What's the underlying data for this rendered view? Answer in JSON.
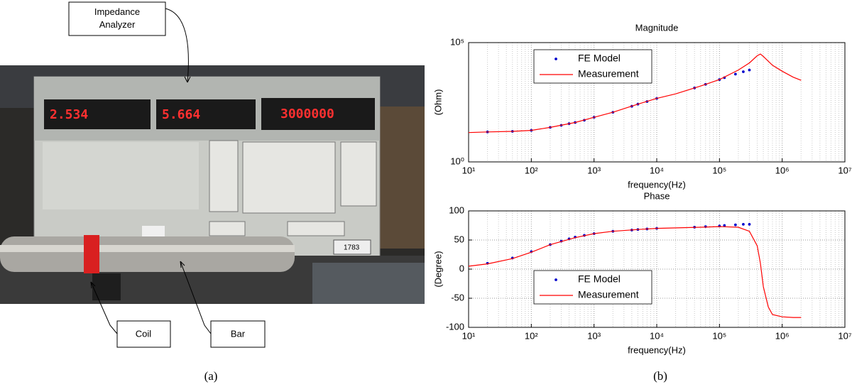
{
  "figure": {
    "callouts": [
      "Impedance\nAnalyzer",
      "Coil",
      "Bar"
    ],
    "panel_labels": [
      "(a)",
      "(b)"
    ],
    "photo": {
      "displays": [
        "2.534",
        "5.664",
        "3000000"
      ],
      "tag": "1783"
    }
  },
  "chart_data": [
    {
      "type": "line",
      "title": "Magnitude",
      "xlabel": "frequency(Hz)",
      "ylabel": "(Ohm)",
      "xscale": "log",
      "yscale": "log",
      "grid": true,
      "minor_grid": true,
      "legend": "upper left",
      "xlim": [
        10,
        10000000
      ],
      "xticks": [
        {
          "value": 10,
          "label": "10¹"
        },
        {
          "value": 100,
          "label": "10²"
        },
        {
          "value": 1000,
          "label": "10³"
        },
        {
          "value": 10000,
          "label": "10⁴"
        },
        {
          "value": 100000,
          "label": "10⁵"
        },
        {
          "value": 1000000,
          "label": "10⁶"
        },
        {
          "value": 10000000,
          "label": "10⁷"
        }
      ],
      "ylim": [
        1,
        100000
      ],
      "yticks": [
        {
          "value": 1,
          "label": "10⁰"
        },
        {
          "value": 100000,
          "label": "10⁵"
        }
      ],
      "series": [
        {
          "name": "FE Model",
          "color": "#0000cc",
          "style": "markers",
          "x": [
            20,
            50,
            100,
            200,
            300,
            400,
            500,
            700,
            1000,
            2000,
            4000,
            5000,
            7000,
            10000,
            40000,
            60000,
            100000,
            120000,
            180000,
            240000,
            300000
          ],
          "values": [
            18,
            19,
            21,
            28,
            34,
            40,
            45,
            56,
            74,
            120,
            214,
            263,
            339,
            457,
            1260,
            1780,
            2820,
            3390,
            4790,
            6030,
            7080
          ]
        },
        {
          "name": "Measurement",
          "color": "#ff0000",
          "style": "line",
          "x": [
            10,
            20,
            50,
            100,
            200,
            500,
            1000,
            2000,
            5000,
            10000,
            20000,
            50000,
            100000,
            200000,
            300000,
            400000,
            450000,
            500000,
            700000,
            1000000,
            1500000,
            2000000
          ],
          "values": [
            17,
            18,
            19,
            21,
            28,
            45,
            74,
            120,
            263,
            457,
            708,
            1510,
            2820,
            7080,
            14100,
            28200,
            33100,
            26300,
            11200,
            6310,
            3550,
            2630
          ]
        }
      ]
    },
    {
      "type": "line",
      "title": "Phase",
      "xlabel": "frequency(Hz)",
      "ylabel": "(Degree)",
      "xscale": "log",
      "yscale": "linear",
      "grid": true,
      "minor_grid": true,
      "legend": "center left",
      "xlim": [
        10,
        10000000
      ],
      "xticks": [
        {
          "value": 10,
          "label": "10¹"
        },
        {
          "value": 100,
          "label": "10²"
        },
        {
          "value": 1000,
          "label": "10³"
        },
        {
          "value": 10000,
          "label": "10⁴"
        },
        {
          "value": 100000,
          "label": "10⁵"
        },
        {
          "value": 1000000,
          "label": "10⁶"
        },
        {
          "value": 10000000,
          "label": "10⁷"
        }
      ],
      "ylim": [
        -100,
        100
      ],
      "yticks": [
        -100,
        -50,
        0,
        50,
        100
      ],
      "series": [
        {
          "name": "FE Model",
          "color": "#0000cc",
          "style": "markers",
          "x": [
            20,
            50,
            100,
            200,
            300,
            400,
            500,
            700,
            1000,
            2000,
            4000,
            5000,
            7000,
            10000,
            40000,
            60000,
            100000,
            120000,
            180000,
            240000,
            300000
          ],
          "values": [
            10,
            19,
            30,
            42,
            48,
            52,
            55,
            58,
            61,
            65,
            67,
            68,
            69,
            70,
            72,
            73,
            74,
            75,
            76,
            77,
            77
          ]
        },
        {
          "name": "Measurement",
          "color": "#ff0000",
          "style": "line",
          "x": [
            10,
            20,
            50,
            100,
            200,
            500,
            1000,
            2000,
            5000,
            10000,
            50000,
            100000,
            200000,
            300000,
            400000,
            450000,
            500000,
            600000,
            700000,
            1000000,
            1500000,
            2000000
          ],
          "values": [
            5,
            9,
            18,
            29,
            42,
            54,
            61,
            65,
            68,
            70,
            72,
            73,
            72,
            65,
            40,
            10,
            -30,
            -65,
            -78,
            -82,
            -83,
            -83
          ]
        }
      ]
    }
  ]
}
